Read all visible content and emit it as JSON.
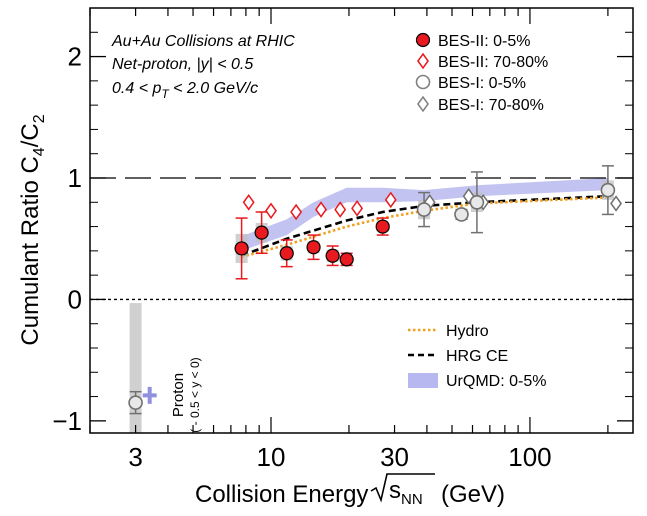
{
  "chart_data": {
    "type": "scatter",
    "title": "",
    "xlabel_prefix": "Collision Energy",
    "xlabel_sqrt": "s",
    "xlabel_sub": "NN",
    "xlabel_suffix": "(GeV)",
    "ylabel_main": "Cumulant Ratio C",
    "ylabel_sub1": "4",
    "ylabel_mid": "/C",
    "ylabel_sub2": "2",
    "xscale": "log",
    "xlim": [
      2.0,
      250
    ],
    "ylim": [
      -1.1,
      2.4
    ],
    "x_ticks": [
      {
        "v": 3,
        "label": "3"
      },
      {
        "v": 10,
        "label": "10"
      },
      {
        "v": 30,
        "label": "30"
      },
      {
        "v": 100,
        "label": "100"
      }
    ],
    "y_ticks": [
      {
        "v": -1,
        "label": "−1"
      },
      {
        "v": 0,
        "label": "0"
      },
      {
        "v": 1,
        "label": "1"
      },
      {
        "v": 2,
        "label": "2"
      }
    ],
    "annotations": {
      "line1": "Au+Au Collisions at RHIC",
      "line2": "Net-proton, |y| < 0.5",
      "line3_a": "0.4 < p",
      "line3_sub": "T",
      "line3_b": " < 2.0 GeV/c",
      "proton_label": "Proton",
      "proton_sub": "( - 0.5 < y < 0)"
    },
    "reference_lines": [
      {
        "y": 1,
        "style": "long-dash"
      },
      {
        "y": 0,
        "style": "dotted"
      }
    ],
    "series": [
      {
        "name": "BES-II: 0-5%",
        "marker": "filled-circle",
        "color": "#e8191f",
        "points": [
          {
            "x": 7.7,
            "y": 0.42,
            "err": 0.25,
            "sys": 0.12
          },
          {
            "x": 9.2,
            "y": 0.55,
            "err": 0.17,
            "sys": 0.08
          },
          {
            "x": 11.5,
            "y": 0.38,
            "err": 0.11,
            "sys": 0.06
          },
          {
            "x": 14.6,
            "y": 0.43,
            "err": 0.1,
            "sys": 0.05
          },
          {
            "x": 17.3,
            "y": 0.36,
            "err": 0.08,
            "sys": 0.05
          },
          {
            "x": 19.6,
            "y": 0.33,
            "err": 0.05,
            "sys": 0.03
          },
          {
            "x": 27,
            "y": 0.6,
            "err": 0.07,
            "sys": 0.04
          }
        ]
      },
      {
        "name": "BES-II: 70-80%",
        "marker": "open-diamond",
        "color": "#e8191f",
        "points": [
          {
            "x": 8.2,
            "y": 0.8,
            "err": 0.03
          },
          {
            "x": 10,
            "y": 0.73,
            "err": 0.05
          },
          {
            "x": 12.5,
            "y": 0.72,
            "err": 0.03
          },
          {
            "x": 15.6,
            "y": 0.74,
            "err": 0.03
          },
          {
            "x": 18.5,
            "y": 0.74,
            "err": 0.03
          },
          {
            "x": 21.5,
            "y": 0.75,
            "err": 0.02
          },
          {
            "x": 29,
            "y": 0.82,
            "err": 0.03
          }
        ]
      },
      {
        "name": "BES-I: 0-5%",
        "marker": "open-circle",
        "color": "#808080",
        "points": [
          {
            "x": 3.0,
            "y": -0.85,
            "err": 0.09,
            "sys": 0.82
          },
          {
            "x": 39,
            "y": 0.74,
            "err": 0.14,
            "sys": 0.08
          },
          {
            "x": 54.4,
            "y": 0.7,
            "err": 0.04,
            "sys": 0.03
          },
          {
            "x": 62.4,
            "y": 0.8,
            "err": 0.25,
            "sys": 0.08
          },
          {
            "x": 200,
            "y": 0.9,
            "err": 0.2,
            "sys": 0.08
          }
        ]
      },
      {
        "name": "BES-I: 70-80%",
        "marker": "open-diamond",
        "color": "#808080",
        "points": [
          {
            "x": 41,
            "y": 0.8,
            "err": 0.02
          },
          {
            "x": 58,
            "y": 0.85,
            "err": 0.02
          },
          {
            "x": 66,
            "y": 0.8,
            "err": 0.02
          },
          {
            "x": 215,
            "y": 0.79,
            "err": 0.02
          }
        ]
      },
      {
        "name": "UrQMD: 0-5%",
        "type": "band",
        "color": "#b8b8f0",
        "points": [
          {
            "x": 7.7,
            "lo": 0.4,
            "hi": 0.52
          },
          {
            "x": 11.5,
            "lo": 0.53,
            "hi": 0.66
          },
          {
            "x": 14.6,
            "lo": 0.68,
            "hi": 0.8
          },
          {
            "x": 19.6,
            "lo": 0.8,
            "hi": 0.92
          },
          {
            "x": 27,
            "lo": 0.8,
            "hi": 0.92
          },
          {
            "x": 39,
            "lo": 0.81,
            "hi": 0.9
          },
          {
            "x": 62.4,
            "lo": 0.85,
            "hi": 0.94
          },
          {
            "x": 200,
            "lo": 0.9,
            "hi": 1.0
          }
        ]
      },
      {
        "name": "HRG CE",
        "type": "line",
        "style": "dashed",
        "color": "#000000",
        "points": [
          {
            "x": 7.7,
            "y": 0.36
          },
          {
            "x": 11.5,
            "y": 0.5
          },
          {
            "x": 19.6,
            "y": 0.65
          },
          {
            "x": 27,
            "y": 0.72
          },
          {
            "x": 39,
            "y": 0.77
          },
          {
            "x": 62.4,
            "y": 0.8
          },
          {
            "x": 200,
            "y": 0.85
          }
        ]
      },
      {
        "name": "Hydro",
        "type": "line",
        "style": "dotted",
        "color": "#f0a020",
        "points": [
          {
            "x": 7.7,
            "y": 0.35
          },
          {
            "x": 11.5,
            "y": 0.45
          },
          {
            "x": 19.6,
            "y": 0.6
          },
          {
            "x": 27,
            "y": 0.67
          },
          {
            "x": 39,
            "y": 0.73
          },
          {
            "x": 62.4,
            "y": 0.79
          },
          {
            "x": 200,
            "y": 0.84
          }
        ]
      },
      {
        "name": "UrQMD proton (3 GeV)",
        "marker": "cross",
        "color": "#9090e0",
        "points": [
          {
            "x": 3.4,
            "y": -0.79,
            "err": 0.07
          }
        ]
      }
    ],
    "legend": [
      {
        "label": "BES-II: 0-5%",
        "marker": "filled-circle",
        "color": "#e8191f"
      },
      {
        "label": "BES-II: 70-80%",
        "marker": "open-diamond",
        "color": "#e8191f"
      },
      {
        "label": "BES-I: 0-5%",
        "marker": "open-circle",
        "color": "#808080"
      },
      {
        "label": "BES-I: 70-80%",
        "marker": "open-diamond",
        "color": "#808080"
      },
      {
        "label": "Hydro",
        "marker": "dotted-line",
        "color": "#f0a020"
      },
      {
        "label": "HRG CE",
        "marker": "dashed-line",
        "color": "#000000"
      },
      {
        "label": "UrQMD: 0-5%",
        "marker": "band",
        "color": "#b8b8f0"
      }
    ]
  }
}
